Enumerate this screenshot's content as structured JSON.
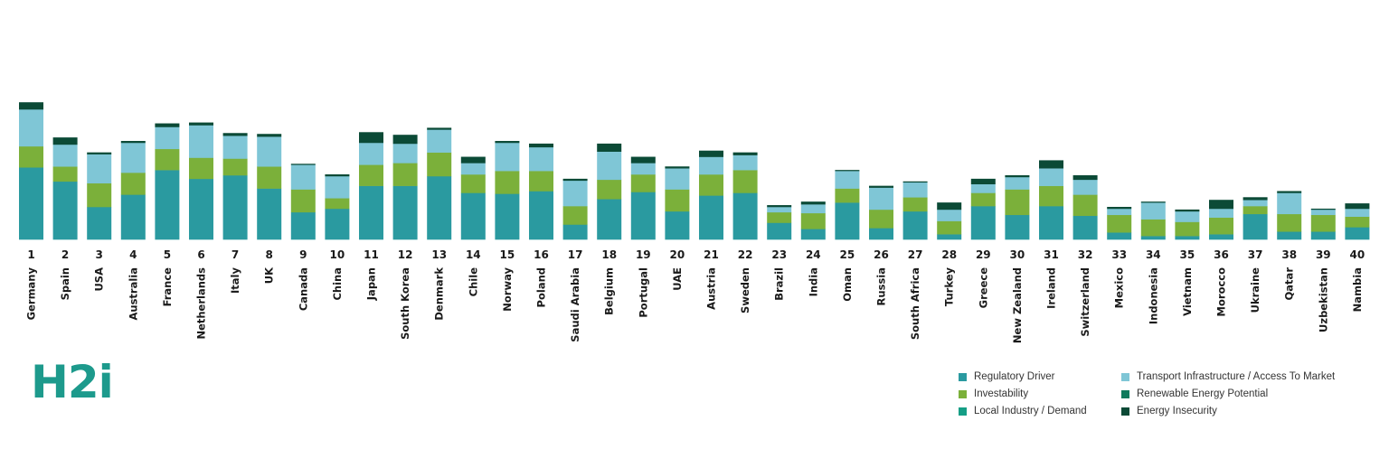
{
  "chart_data": {
    "type": "bar",
    "stacked": true,
    "categories": [
      "Germany",
      "Spain",
      "USA",
      "Australia",
      "France",
      "Netherlands",
      "Italy",
      "UK",
      "Canada",
      "China",
      "Japan",
      "South Korea",
      "Denmark",
      "Chile",
      "Norway",
      "Poland",
      "Saudi Arabia",
      "Belgium",
      "Portugal",
      "UAE",
      "Austria",
      "Sweden",
      "Brazil",
      "India",
      "Oman",
      "Russia",
      "South Africa",
      "Turkey",
      "Greece",
      "New Zealand",
      "Ireland",
      "Switzerland",
      "Mexico",
      "Indonesia",
      "Vietnam",
      "Morocco",
      "Ukraine",
      "Qatar",
      "Uzbekistan",
      "Nambia"
    ],
    "ranks": [
      "1",
      "2",
      "3",
      "4",
      "5",
      "6",
      "7",
      "8",
      "9",
      "10",
      "11",
      "12",
      "13",
      "14",
      "15",
      "16",
      "17",
      "18",
      "19",
      "20",
      "21",
      "22",
      "23",
      "24",
      "25",
      "26",
      "27",
      "28",
      "29",
      "30",
      "31",
      "32",
      "33",
      "34",
      "35",
      "36",
      "37",
      "38",
      "39",
      "40"
    ],
    "series": [
      {
        "name": "Regulatory Driver",
        "color": "#2a9aa0",
        "values": [
          82,
          66,
          37,
          51,
          79,
          69,
          73,
          58,
          31,
          35,
          61,
          61,
          72,
          53,
          52,
          55,
          17,
          46,
          54,
          32,
          50,
          53,
          19,
          12,
          42,
          13,
          32,
          6,
          38,
          28,
          38,
          27,
          8,
          4,
          4,
          6,
          29,
          9,
          9,
          14
        ]
      },
      {
        "name": "Investability",
        "color": "#7bb03a",
        "values": [
          24,
          17,
          27,
          25,
          24,
          24,
          19,
          25,
          26,
          12,
          24,
          26,
          27,
          21,
          26,
          23,
          21,
          22,
          20,
          25,
          24,
          26,
          12,
          18,
          16,
          21,
          16,
          15,
          15,
          29,
          23,
          24,
          20,
          19,
          16,
          19,
          9,
          20,
          19,
          12
        ]
      },
      {
        "name": "Local Industry / Demand",
        "color": "#159e86",
        "values": [
          0,
          0,
          0,
          0,
          0,
          0,
          0,
          0,
          0,
          0,
          0,
          0,
          0,
          0,
          0,
          0,
          0,
          0,
          0,
          0,
          0,
          0,
          0,
          0,
          0,
          0,
          0,
          0,
          0,
          0,
          0,
          0,
          0,
          0,
          0,
          0,
          0,
          0,
          0,
          0
        ]
      },
      {
        "name": "Transport Infrastructure / Access To Market",
        "color": "#7fc6d6",
        "values": [
          42,
          25,
          33,
          34,
          25,
          37,
          26,
          34,
          28,
          25,
          25,
          22,
          26,
          13,
          32,
          27,
          29,
          32,
          13,
          24,
          20,
          17,
          6,
          10,
          20,
          25,
          17,
          13,
          10,
          14,
          20,
          17,
          7,
          19,
          12,
          10,
          7,
          24,
          6,
          9
        ]
      },
      {
        "name": "Renewable Energy Potential",
        "color": "#0f7a5c",
        "values": [
          0,
          0,
          0,
          0,
          0,
          0,
          0,
          0,
          0,
          0,
          0,
          0,
          0,
          0,
          0,
          0,
          0,
          0,
          0,
          0,
          0,
          0,
          0,
          0,
          0,
          0,
          0,
          0,
          0,
          0,
          0,
          0,
          0,
          0,
          0,
          0,
          0,
          0,
          0,
          0
        ]
      },
      {
        "name": "Energy Insecurity",
        "color": "#0b4a36",
        "values": [
          8,
          8,
          2,
          2,
          4,
          3,
          3,
          3,
          1,
          2,
          12,
          10,
          2,
          7,
          2,
          4,
          2,
          9,
          7,
          2,
          7,
          3,
          2,
          3,
          1,
          2,
          1,
          8,
          6,
          2,
          9,
          5,
          2,
          1,
          2,
          10,
          3,
          2,
          1,
          6
        ]
      }
    ],
    "ylim": [
      0,
      260
    ],
    "legend": "bottom-right",
    "grid": false,
    "logo_text": "H2i"
  }
}
